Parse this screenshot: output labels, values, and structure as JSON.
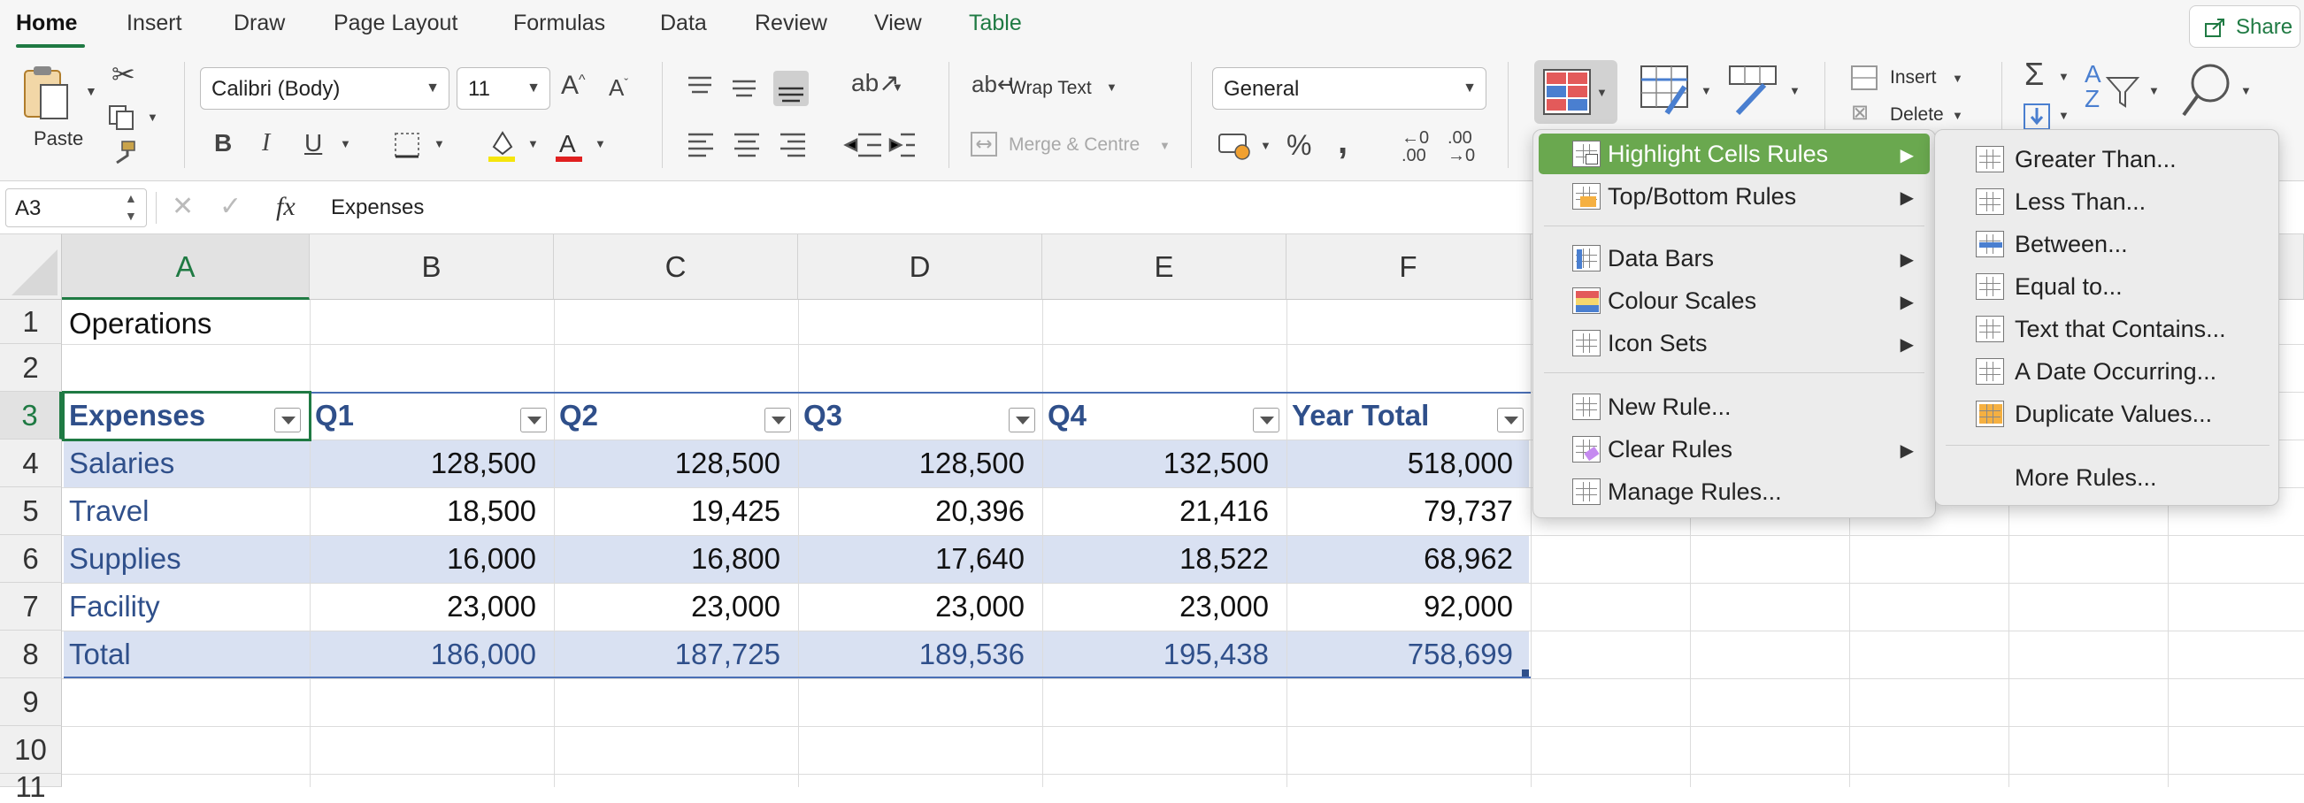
{
  "ribbon": {
    "tabs": [
      {
        "label": "Home"
      },
      {
        "label": "Insert"
      },
      {
        "label": "Draw"
      },
      {
        "label": "Page Layout"
      },
      {
        "label": "Formulas"
      },
      {
        "label": "Data"
      },
      {
        "label": "Review"
      },
      {
        "label": "View"
      },
      {
        "label": "Table"
      }
    ],
    "share_label": "Share",
    "paste_label": "Paste",
    "font_name": "Calibri (Body)",
    "font_size": "11",
    "wrap_text_label": "Wrap Text",
    "merge_center_label": "Merge & Centre",
    "number_format": "General",
    "insert_label": "Insert",
    "delete_label": "Delete",
    "accent_color": "#1f7a43"
  },
  "formula_bar": {
    "name_box": "A3",
    "fx_label": "fx",
    "content": "Expenses"
  },
  "grid": {
    "columns": [
      "A",
      "B",
      "C",
      "D",
      "E",
      "F"
    ],
    "rows": [
      "1",
      "2",
      "3",
      "4",
      "5",
      "6",
      "7",
      "8",
      "9",
      "10",
      "11"
    ],
    "title": "Operations",
    "table_headers": [
      "Expenses",
      "Q1",
      "Q2",
      "Q3",
      "Q4",
      "Year Total"
    ],
    "table_rows": [
      [
        "Salaries",
        "128,500",
        "128,500",
        "128,500",
        "132,500",
        "518,000"
      ],
      [
        "Travel",
        "18,500",
        "19,425",
        "20,396",
        "21,416",
        "79,737"
      ],
      [
        "Supplies",
        "16,000",
        "16,800",
        "17,640",
        "18,522",
        "68,962"
      ],
      [
        "Facility",
        "23,000",
        "23,000",
        "23,000",
        "23,000",
        "92,000"
      ],
      [
        "Total",
        "186,000",
        "187,725",
        "189,536",
        "195,438",
        "758,699"
      ]
    ],
    "band_color": "#d9e1f2",
    "selected_cell": "A3"
  },
  "cf_menu": {
    "items": [
      {
        "label": "Highlight Cells Rules",
        "submenu": true
      },
      {
        "label": "Top/Bottom Rules",
        "submenu": true
      },
      {
        "label": "Data Bars",
        "submenu": true
      },
      {
        "label": "Colour Scales",
        "submenu": true
      },
      {
        "label": "Icon Sets",
        "submenu": true
      },
      {
        "label": "New Rule...",
        "submenu": false
      },
      {
        "label": "Clear Rules",
        "submenu": true
      },
      {
        "label": "Manage Rules...",
        "submenu": false
      }
    ],
    "highlight_color": "#6aa84f"
  },
  "highlight_submenu": {
    "items": [
      {
        "label": "Greater Than..."
      },
      {
        "label": "Less Than..."
      },
      {
        "label": "Between..."
      },
      {
        "label": "Equal to..."
      },
      {
        "label": "Text that Contains..."
      },
      {
        "label": "A Date Occurring..."
      },
      {
        "label": "Duplicate Values..."
      },
      {
        "label": "More Rules..."
      }
    ]
  }
}
